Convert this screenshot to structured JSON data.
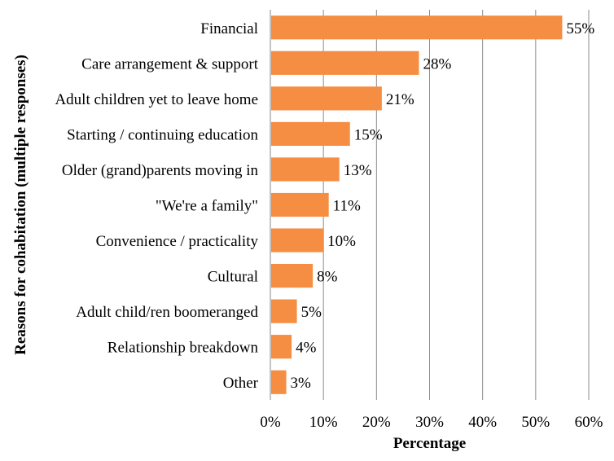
{
  "chart_data": {
    "type": "bar",
    "orientation": "horizontal",
    "categories": [
      "Financial",
      "Care arrangement & support",
      "Adult children yet to leave home",
      "Starting / continuing education",
      "Older (grand)parents moving in",
      "\"We're a family\"",
      "Convenience / practicality",
      "Cultural",
      "Adult child/ren boomeranged",
      "Relationship breakdown",
      "Other"
    ],
    "values": [
      55,
      28,
      21,
      15,
      13,
      11,
      10,
      8,
      5,
      4,
      3
    ],
    "value_labels": [
      "55%",
      "28%",
      "21%",
      "15%",
      "13%",
      "11%",
      "10%",
      "8%",
      "5%",
      "4%",
      "3%"
    ],
    "xlim": [
      0,
      60
    ],
    "xticks": [
      "0%",
      "10%",
      "20%",
      "30%",
      "40%",
      "50%",
      "60%"
    ],
    "xlabel": "Percentage",
    "ylabel": "Reasons for cohabitation (multiple responses)",
    "bar_color": "#F58D42",
    "grid": "vertical",
    "legend": "none"
  }
}
